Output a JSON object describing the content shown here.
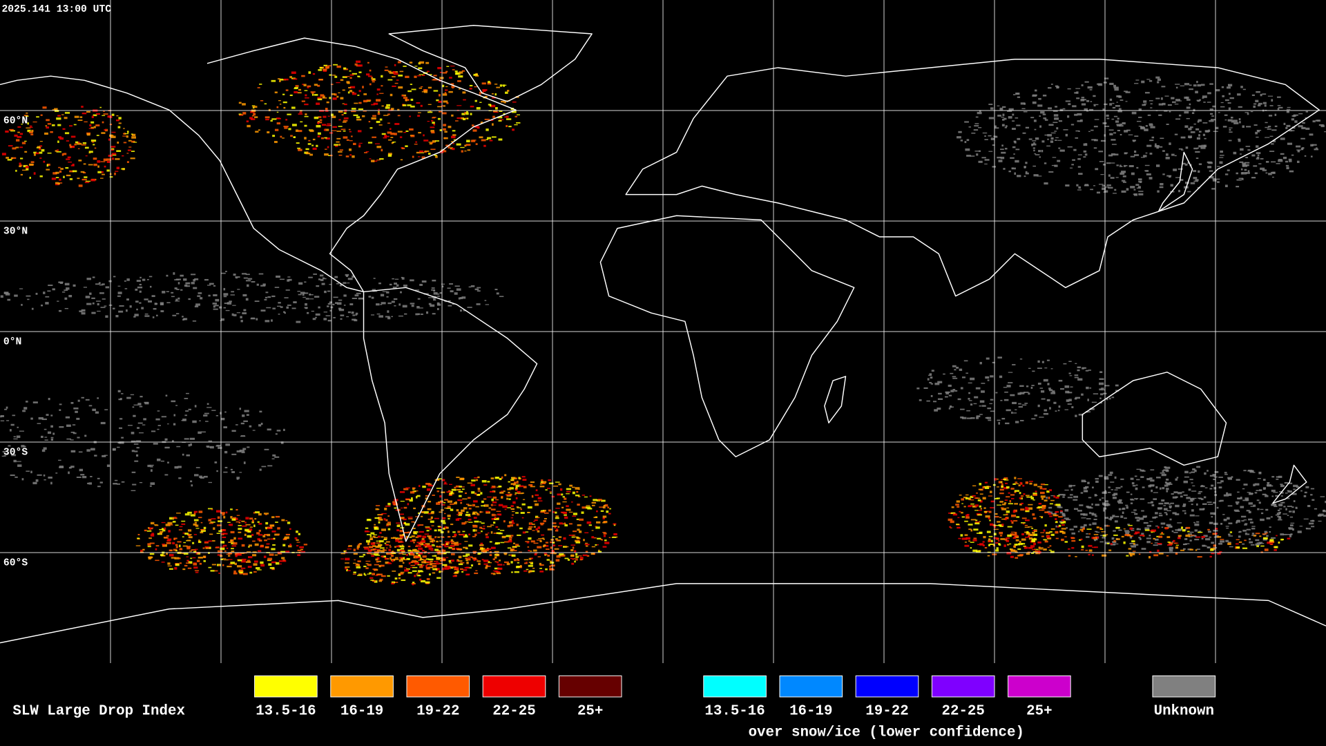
{
  "header": {
    "timestamp": "2025.141 13:00 UTC"
  },
  "map": {
    "latitude_labels": [
      "60°N",
      "30°N",
      "0°N",
      "30°S",
      "60°S"
    ]
  },
  "legend": {
    "title": "SLW Large Drop Index",
    "groups": [
      {
        "items": [
          {
            "label": "13.5-16",
            "color": "#ffff00"
          },
          {
            "label": "16-19",
            "color": "#ff9900"
          },
          {
            "label": "19-22",
            "color": "#ff5a00"
          },
          {
            "label": "22-25",
            "color": "#ee0000"
          },
          {
            "label": "25+",
            "color": "#660000"
          }
        ]
      },
      {
        "items": [
          {
            "label": "13.5-16",
            "color": "#00ffff"
          },
          {
            "label": "16-19",
            "color": "#0088ff"
          },
          {
            "label": "19-22",
            "color": "#0000ff"
          },
          {
            "label": "22-25",
            "color": "#7f00ff"
          },
          {
            "label": "25+",
            "color": "#cc00cc"
          }
        ],
        "caption": "over snow/ice (lower confidence)"
      }
    ],
    "unknown": {
      "label": "Unknown",
      "color": "#808080"
    }
  }
}
